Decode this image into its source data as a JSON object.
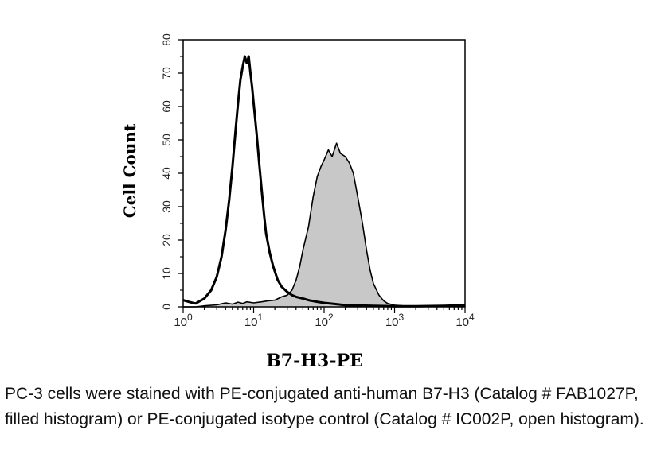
{
  "chart_data": {
    "type": "area",
    "title": "",
    "xlabel": "B7-H3-PE",
    "ylabel": "Cell Count",
    "xscale": "log",
    "xlim": [
      1,
      10000
    ],
    "ylim": [
      0,
      80
    ],
    "grid": false,
    "y_ticks": [
      0,
      10,
      20,
      30,
      40,
      50,
      60,
      70,
      80
    ],
    "y_tick_labels": [
      "0",
      "10",
      "20",
      "30",
      "40",
      "50",
      "60",
      "70",
      "80"
    ],
    "x_ticks": [
      1,
      10,
      100,
      1000,
      10000
    ],
    "x_tick_labels": [
      {
        "base": "10",
        "exp": "0"
      },
      {
        "base": "10",
        "exp": "1"
      },
      {
        "base": "10",
        "exp": "2"
      },
      {
        "base": "10",
        "exp": "3"
      },
      {
        "base": "10",
        "exp": "4"
      }
    ],
    "series": [
      {
        "style": "filled",
        "fill_color": "#c8c8c8",
        "line_color": "#000000",
        "x": [
          1,
          1.5,
          2,
          3,
          4,
          5,
          6,
          7,
          8,
          10,
          13,
          16,
          20,
          25,
          30,
          35,
          40,
          45,
          50,
          60,
          70,
          80,
          90,
          100,
          115,
          130,
          150,
          170,
          200,
          230,
          260,
          300,
          350,
          400,
          450,
          500,
          600,
          700,
          800,
          1000,
          1300,
          2000,
          4000,
          10000
        ],
        "y": [
          0,
          0,
          0.3,
          0.6,
          1.2,
          0.8,
          1.4,
          1.0,
          1.5,
          1.2,
          1.5,
          1.8,
          2.0,
          3.0,
          3.5,
          5.0,
          8.0,
          12.0,
          17.0,
          24.0,
          33.0,
          39.0,
          42.0,
          44.0,
          47.0,
          45.0,
          49.0,
          46.0,
          45.0,
          43.0,
          40.0,
          33.0,
          25.0,
          17.0,
          11.0,
          7.0,
          3.5,
          1.8,
          1.0,
          0.5,
          0.3,
          0.2,
          0.2,
          0.5
        ]
      },
      {
        "style": "open",
        "fill_color": "none",
        "line_color": "#000000",
        "x": [
          1,
          1.2,
          1.5,
          2,
          2.5,
          3,
          3.5,
          4,
          4.5,
          5,
          5.5,
          6,
          6.5,
          7,
          7.5,
          8,
          8.5,
          9,
          9.5,
          10,
          11,
          12,
          13,
          14,
          15,
          17,
          19,
          22,
          25,
          30,
          35,
          40,
          50,
          60,
          80,
          100,
          150,
          200,
          300,
          500,
          1000,
          2000,
          5000,
          10000
        ],
        "y": [
          2.0,
          1.5,
          1.0,
          2.5,
          5.0,
          9.0,
          15.0,
          23.0,
          32.0,
          42.0,
          52.0,
          61.0,
          68.0,
          72.0,
          75.0,
          73.0,
          75.0,
          70.0,
          66.0,
          61.0,
          52.0,
          43.0,
          35.0,
          28.0,
          22.0,
          16.0,
          12.0,
          8.0,
          6.0,
          4.5,
          3.5,
          3.0,
          2.5,
          2.0,
          1.5,
          1.2,
          0.8,
          0.5,
          0.4,
          0.3,
          0.2,
          0.2,
          0.3,
          0.5
        ]
      }
    ]
  },
  "caption": "PC-3 cells were stained with PE-conjugated anti-human B7-H3 (Catalog # FAB1027P, filled histogram) or PE-conjugated isotype control (Catalog # IC002P, open histogram)."
}
